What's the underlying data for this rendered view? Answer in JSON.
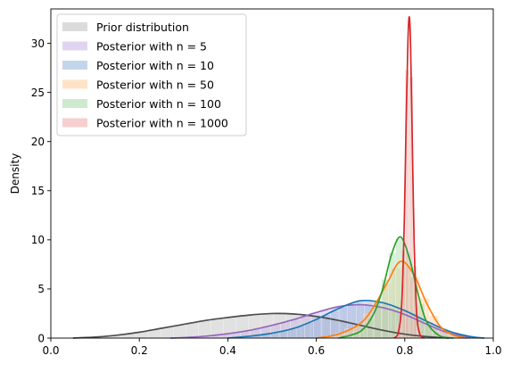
{
  "chart_data": {
    "type": "area",
    "title": "",
    "xlabel": "",
    "ylabel": "Density",
    "xlim": [
      0.0,
      1.0
    ],
    "ylim": [
      0,
      33.5
    ],
    "x_ticks": [
      "0.0",
      "0.2",
      "0.4",
      "0.6",
      "0.8",
      "1.0"
    ],
    "x_tick_values": [
      0.0,
      0.2,
      0.4,
      0.6,
      0.8,
      1.0
    ],
    "y_ticks": [
      "0",
      "5",
      "10",
      "15",
      "20",
      "25",
      "30"
    ],
    "y_tick_values": [
      0,
      5,
      10,
      15,
      20,
      25,
      30
    ],
    "grid": false,
    "legend_position": "top-left",
    "series": [
      {
        "name": "Prior distribution",
        "fill_color": "#bdbdbd",
        "line_color": "#4d4d4d",
        "x": [
          0.05,
          0.1,
          0.15,
          0.2,
          0.25,
          0.3,
          0.35,
          0.4,
          0.45,
          0.5,
          0.55,
          0.6,
          0.65,
          0.7,
          0.75,
          0.8,
          0.85,
          0.9
        ],
        "y": [
          0.0,
          0.1,
          0.3,
          0.6,
          1.0,
          1.4,
          1.8,
          2.1,
          2.35,
          2.5,
          2.45,
          2.2,
          1.8,
          1.3,
          0.8,
          0.4,
          0.15,
          0.0
        ]
      },
      {
        "name": "Posterior with n = 5",
        "fill_color": "#c7b3e5",
        "line_color": "#9467bd",
        "x": [
          0.27,
          0.3,
          0.35,
          0.4,
          0.45,
          0.5,
          0.55,
          0.6,
          0.65,
          0.7,
          0.75,
          0.8,
          0.85,
          0.9,
          0.95
        ],
        "y": [
          0.0,
          0.05,
          0.2,
          0.45,
          0.8,
          1.3,
          1.9,
          2.6,
          3.2,
          3.4,
          3.1,
          2.4,
          1.4,
          0.5,
          0.05
        ]
      },
      {
        "name": "Posterior with n = 10",
        "fill_color": "#8fb3d9",
        "line_color": "#1f77b4",
        "x": [
          0.4,
          0.45,
          0.5,
          0.55,
          0.6,
          0.65,
          0.7,
          0.75,
          0.8,
          0.85,
          0.9,
          0.95,
          0.98
        ],
        "y": [
          0.0,
          0.2,
          0.5,
          1.0,
          1.9,
          3.0,
          3.8,
          3.6,
          2.8,
          1.7,
          0.7,
          0.15,
          0.0
        ]
      },
      {
        "name": "Posterior with n = 50",
        "fill_color": "#ffcc99",
        "line_color": "#ff7f0e",
        "x": [
          0.6,
          0.65,
          0.7,
          0.73,
          0.76,
          0.79,
          0.82,
          0.85,
          0.88,
          0.91,
          0.94
        ],
        "y": [
          0.0,
          0.4,
          1.5,
          3.2,
          5.6,
          7.8,
          6.5,
          3.5,
          1.2,
          0.3,
          0.0
        ]
      },
      {
        "name": "Posterior with n = 100",
        "fill_color": "#a6d9a6",
        "line_color": "#2ca02c",
        "x": [
          0.65,
          0.7,
          0.73,
          0.75,
          0.77,
          0.79,
          0.81,
          0.83,
          0.85,
          0.88,
          0.91
        ],
        "y": [
          0.0,
          0.7,
          2.5,
          5.0,
          8.5,
          10.3,
          8.2,
          4.5,
          1.6,
          0.2,
          0.0
        ]
      },
      {
        "name": "Posterior with n = 1000",
        "fill_color": "#f0a8a8",
        "line_color": "#d62728",
        "x": [
          0.775,
          0.785,
          0.793,
          0.799,
          0.803,
          0.807,
          0.81,
          0.813,
          0.817,
          0.821,
          0.827,
          0.835,
          0.845
        ],
        "y": [
          0.0,
          0.5,
          3.5,
          12.0,
          22.0,
          30.0,
          32.7,
          30.0,
          20.0,
          10.0,
          2.5,
          0.3,
          0.0
        ]
      }
    ]
  }
}
